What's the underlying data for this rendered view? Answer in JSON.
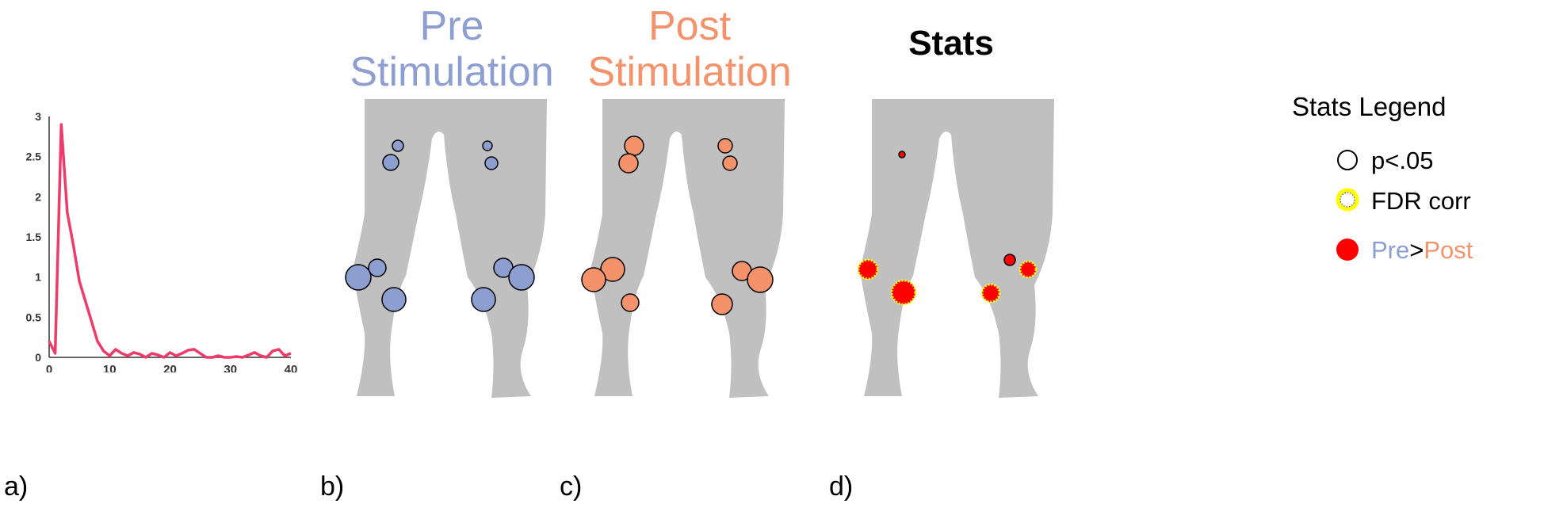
{
  "colors": {
    "pre": "#8c9fd0",
    "post": "#f4936b",
    "stats_title": "#000000",
    "leg": "#c0c0c0",
    "line": "#f03a6a",
    "significant": "#ff0000",
    "fdr": "#ffff00"
  },
  "panel_labels": {
    "a": "a)",
    "b": "b)",
    "c": "c)",
    "d": "d)"
  },
  "titles": {
    "pre": [
      "Pre",
      "Stimulation"
    ],
    "post": [
      "Post",
      "Stimulation"
    ],
    "stats": "Stats"
  },
  "legend": {
    "title": "Stats Legend",
    "items": [
      {
        "marker": "black-ring",
        "label": "p<.05"
      },
      {
        "marker": "yellow-dotted-ring",
        "label": "FDR corr"
      },
      {
        "marker": "red-disc",
        "label_parts": [
          "Pre",
          ">",
          "Post"
        ]
      }
    ]
  },
  "chart_data": {
    "type": "line",
    "title": "",
    "xlabel": "",
    "ylabel": "",
    "xlim": [
      0,
      40
    ],
    "ylim": [
      0,
      3
    ],
    "xticks": [
      0,
      10,
      20,
      30,
      40
    ],
    "yticks": [
      0,
      0.5,
      1,
      1.5,
      2,
      2.5,
      3
    ],
    "ytick_labels": [
      "0",
      "0.5",
      "1",
      "1.5",
      "2",
      "2.5",
      "3"
    ],
    "grid": false,
    "series": [
      {
        "x": [
          0,
          1,
          2,
          3,
          4,
          5,
          6,
          7,
          8,
          9,
          10,
          11,
          12,
          13,
          14,
          15,
          16,
          17,
          18,
          19,
          20,
          21,
          22,
          23,
          24,
          25,
          26,
          27,
          28,
          29,
          30,
          31,
          32,
          33,
          34,
          35,
          36,
          37,
          38,
          39,
          40
        ],
        "y": [
          0.2,
          0.05,
          2.9,
          1.8,
          1.4,
          0.95,
          0.7,
          0.45,
          0.2,
          0.08,
          0.02,
          0.1,
          0.05,
          0.02,
          0.06,
          0.04,
          0.0,
          0.05,
          0.03,
          0.0,
          0.06,
          0.02,
          0.05,
          0.09,
          0.1,
          0.05,
          0.0,
          0.0,
          0.02,
          0.0,
          0.0,
          0.01,
          0.0,
          0.03,
          0.06,
          0.02,
          0.0,
          0.08,
          0.1,
          0.02,
          0.05
        ]
      }
    ]
  }
}
